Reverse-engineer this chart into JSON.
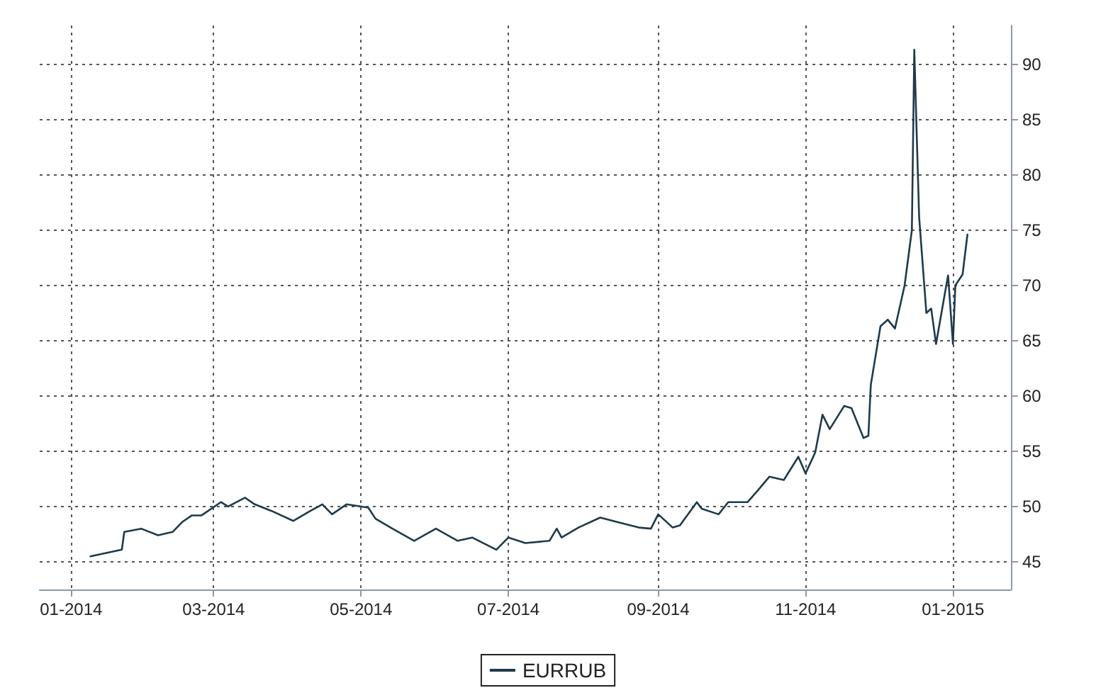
{
  "chart_data": {
    "type": "line",
    "x": [
      "2014-01-09",
      "2014-01-22",
      "2014-01-23",
      "2014-01-30",
      "2014-02-06",
      "2014-02-12",
      "2014-02-16",
      "2014-02-20",
      "2014-02-24",
      "2014-03-04",
      "2014-03-07",
      "2014-03-14",
      "2014-03-18",
      "2014-03-25",
      "2014-04-03",
      "2014-04-10",
      "2014-04-15",
      "2014-04-19",
      "2014-04-25",
      "2014-05-04",
      "2014-05-07",
      "2014-05-14",
      "2014-05-23",
      "2014-06-01",
      "2014-06-10",
      "2014-06-16",
      "2014-06-26",
      "2014-07-01",
      "2014-07-08",
      "2014-07-18",
      "2014-07-21",
      "2014-07-23",
      "2014-07-30",
      "2014-08-08",
      "2014-08-15",
      "2014-08-24",
      "2014-08-29",
      "2014-09-01",
      "2014-09-07",
      "2014-09-10",
      "2014-09-17",
      "2014-09-19",
      "2014-09-26",
      "2014-09-30",
      "2014-10-08",
      "2014-10-12",
      "2014-10-17",
      "2014-10-23",
      "2014-10-29",
      "2014-11-01",
      "2014-11-05",
      "2014-11-08",
      "2014-11-11",
      "2014-11-17",
      "2014-11-20",
      "2014-11-25",
      "2014-11-27",
      "2014-11-28",
      "2014-12-02",
      "2014-12-05",
      "2014-12-08",
      "2014-12-12",
      "2014-12-15",
      "2014-12-16",
      "2014-12-17",
      "2014-12-18",
      "2014-12-21",
      "2014-12-23",
      "2014-12-25",
      "2014-12-29",
      "2014-12-30",
      "2015-01-01",
      "2015-01-02",
      "2015-01-05",
      "2015-01-07"
    ],
    "series": [
      {
        "name": "EURRUB",
        "color": "#1f3a4a",
        "values": [
          45.5,
          46.1,
          47.7,
          48.0,
          47.4,
          47.7,
          48.6,
          49.2,
          49.2,
          50.4,
          50.0,
          50.8,
          50.2,
          49.6,
          48.7,
          49.6,
          50.2,
          49.3,
          50.2,
          49.9,
          48.9,
          48.0,
          46.9,
          48.0,
          46.9,
          47.2,
          46.1,
          47.2,
          46.7,
          46.9,
          48.0,
          47.2,
          48.1,
          49.0,
          48.6,
          48.1,
          48.0,
          49.3,
          48.1,
          48.3,
          50.4,
          49.8,
          49.3,
          50.4,
          50.4,
          51.4,
          52.7,
          52.4,
          54.5,
          53.0,
          54.9,
          58.3,
          57.0,
          59.1,
          58.9,
          56.2,
          56.4,
          61.0,
          66.3,
          66.9,
          66.1,
          70.0,
          75.0,
          91.3,
          83.7,
          76.2,
          67.5,
          67.9,
          64.7,
          69.7,
          70.9,
          64.7,
          70.0,
          71.0,
          74.6
        ]
      }
    ],
    "xlim": [
      "2013-12-19",
      "2015-01-25"
    ],
    "xticks": [
      {
        "value": "2014-01",
        "label": "01-2014"
      },
      {
        "value": "2014-03",
        "label": "03-2014"
      },
      {
        "value": "2014-05",
        "label": "05-2014"
      },
      {
        "value": "2014-07",
        "label": "07-2014"
      },
      {
        "value": "2014-09",
        "label": "09-2014"
      },
      {
        "value": "2014-11",
        "label": "11-2014"
      },
      {
        "value": "2015-01",
        "label": "01-2015"
      }
    ],
    "ylim": [
      42.5,
      93.5
    ],
    "yticks": [
      45,
      50,
      55,
      60,
      65,
      70,
      75,
      80,
      85,
      90
    ],
    "grid": true,
    "legend": "bottom",
    "marker": "none",
    "line_style": "solid"
  }
}
